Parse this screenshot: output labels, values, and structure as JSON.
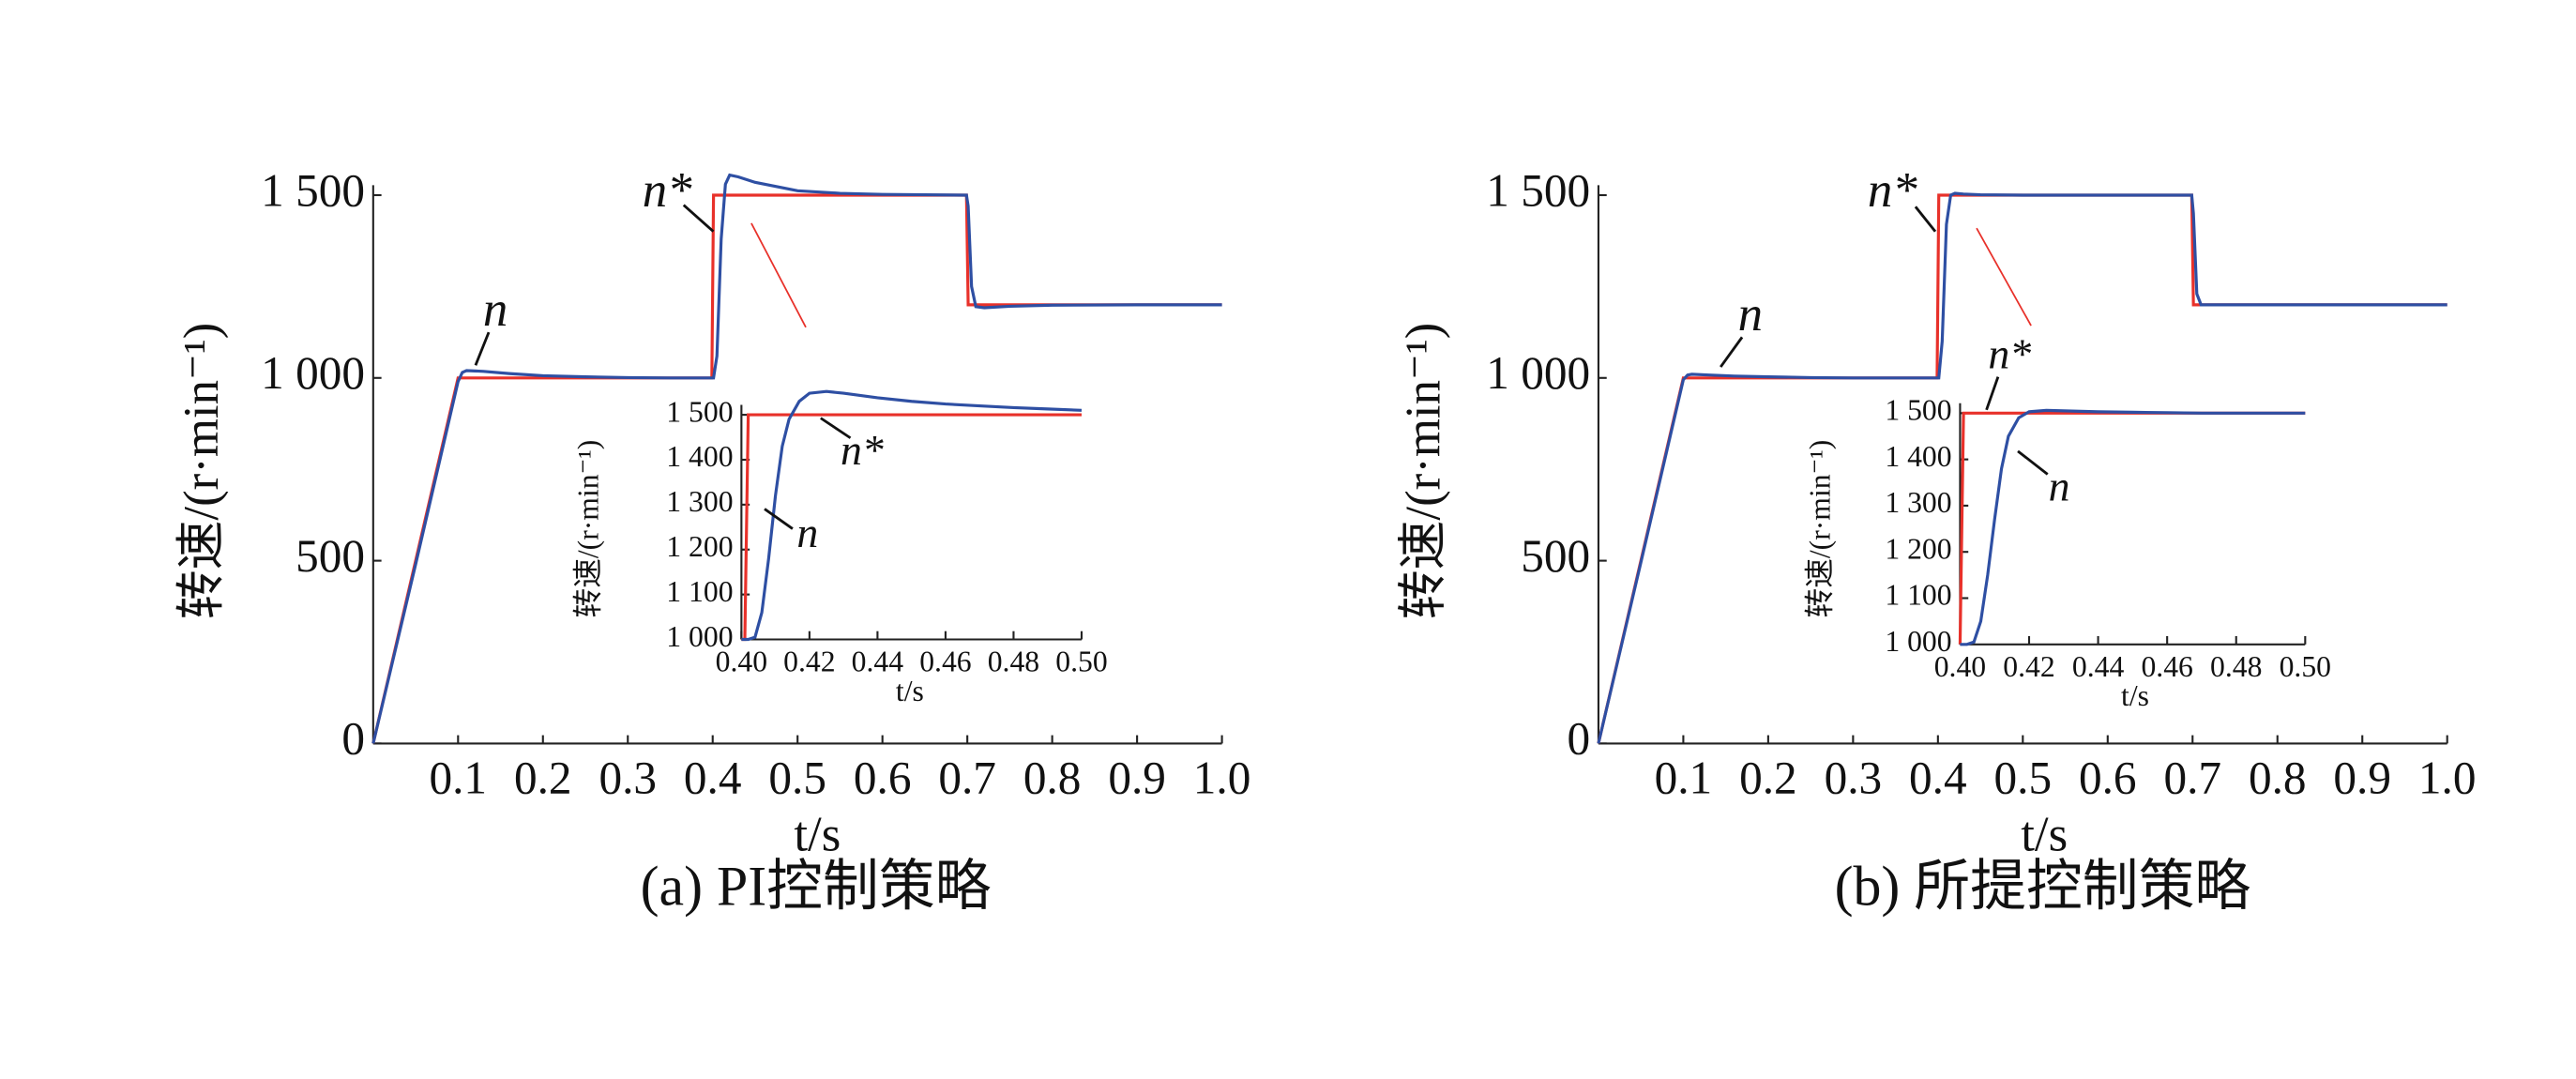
{
  "chart_data": [
    {
      "type": "line",
      "caption": "(a) PI控制策略",
      "xlabel": "t/s",
      "ylabel": "转速/(r·min⁻¹)",
      "xlim": [
        0,
        1
      ],
      "ylim": [
        0,
        1500
      ],
      "xticks": [
        0.1,
        0.2,
        0.3,
        0.4,
        0.5,
        0.6,
        0.7,
        0.8,
        0.9,
        {
          "value": 1,
          "label": "1.0"
        }
      ],
      "yticks": [
        0,
        500,
        {
          "value": 1000,
          "label": "1 000"
        },
        {
          "value": 1500,
          "label": "1 500"
        }
      ],
      "x": [
        0,
        0.05,
        0.1,
        0.105,
        0.11,
        0.13,
        0.16,
        0.2,
        0.25,
        0.3,
        0.35,
        0.399,
        0.401,
        0.405,
        0.41,
        0.415,
        0.42,
        0.43,
        0.45,
        0.5,
        0.55,
        0.6,
        0.65,
        0.699,
        0.701,
        0.705,
        0.71,
        0.72,
        0.75,
        0.8,
        0.9,
        1.0
      ],
      "series": [
        {
          "name": "n*",
          "color": "#e8312a",
          "values": [
            0,
            500,
            1000,
            1000,
            1000,
            1000,
            1000,
            1000,
            1000,
            1000,
            1000,
            1000,
            1500,
            1500,
            1500,
            1500,
            1500,
            1500,
            1500,
            1500,
            1500,
            1500,
            1500,
            1500,
            1200,
            1200,
            1200,
            1200,
            1200,
            1200,
            1200,
            1200
          ]
        },
        {
          "name": "n",
          "color": "#2e4fa3",
          "values": [
            0,
            490,
            990,
            1015,
            1020,
            1018,
            1012,
            1006,
            1003,
            1001,
            1000,
            1000,
            1000,
            1060,
            1380,
            1530,
            1555,
            1550,
            1535,
            1512,
            1505,
            1502,
            1501,
            1500,
            1470,
            1250,
            1195,
            1192,
            1196,
            1199,
            1200,
            1200
          ]
        }
      ]
    },
    {
      "type": "line",
      "xlabel": "t/s",
      "ylabel": "转速/(r·min⁻¹)",
      "xlim": [
        0.4,
        0.5
      ],
      "ylim": [
        1000,
        1500
      ],
      "xticks": [
        {
          "value": 0.4,
          "label": "0.40"
        },
        {
          "value": 0.42,
          "label": "0.42"
        },
        {
          "value": 0.44,
          "label": "0.44"
        },
        {
          "value": 0.46,
          "label": "0.46"
        },
        {
          "value": 0.48,
          "label": "0.48"
        },
        {
          "value": 0.5,
          "label": "0.50"
        }
      ],
      "yticks": [
        {
          "value": 1000,
          "label": "1 000"
        },
        {
          "value": 1100,
          "label": "1 100"
        },
        {
          "value": 1200,
          "label": "1 200"
        },
        {
          "value": 1300,
          "label": "1 300"
        },
        {
          "value": 1400,
          "label": "1 400"
        },
        {
          "value": 1500,
          "label": "1 500"
        }
      ],
      "x": [
        0.4,
        0.401,
        0.402,
        0.404,
        0.406,
        0.408,
        0.41,
        0.412,
        0.414,
        0.417,
        0.42,
        0.425,
        0.43,
        0.44,
        0.45,
        0.46,
        0.47,
        0.48,
        0.49,
        0.5
      ],
      "series": [
        {
          "name": "n*",
          "color": "#e8312a",
          "values": [
            1000,
            1000,
            1500,
            1500,
            1500,
            1500,
            1500,
            1500,
            1500,
            1500,
            1500,
            1500,
            1500,
            1500,
            1500,
            1500,
            1500,
            1500,
            1500,
            1500
          ]
        },
        {
          "name": "n",
          "color": "#2e4fa3",
          "values": [
            1000,
            1000,
            1000,
            1005,
            1060,
            1180,
            1320,
            1430,
            1490,
            1530,
            1548,
            1552,
            1548,
            1538,
            1530,
            1524,
            1520,
            1516,
            1513,
            1510
          ]
        }
      ]
    },
    {
      "type": "line",
      "caption": "(b) 所提控制策略",
      "xlabel": "t/s",
      "ylabel": "转速/(r·min⁻¹)",
      "xlim": [
        0,
        1
      ],
      "ylim": [
        0,
        1500
      ],
      "xticks": [
        0.1,
        0.2,
        0.3,
        0.4,
        0.5,
        0.6,
        0.7,
        0.8,
        0.9,
        {
          "value": 1,
          "label": "1.0"
        }
      ],
      "yticks": [
        0,
        500,
        {
          "value": 1000,
          "label": "1 000"
        },
        {
          "value": 1500,
          "label": "1 500"
        }
      ],
      "x": [
        0,
        0.05,
        0.1,
        0.105,
        0.11,
        0.13,
        0.16,
        0.2,
        0.25,
        0.3,
        0.35,
        0.399,
        0.401,
        0.405,
        0.41,
        0.415,
        0.42,
        0.43,
        0.45,
        0.5,
        0.55,
        0.6,
        0.65,
        0.699,
        0.701,
        0.705,
        0.71,
        0.72,
        0.75,
        0.8,
        0.9,
        1.0
      ],
      "series": [
        {
          "name": "n*",
          "color": "#e8312a",
          "values": [
            0,
            500,
            1000,
            1000,
            1000,
            1000,
            1000,
            1000,
            1000,
            1000,
            1000,
            1000,
            1500,
            1500,
            1500,
            1500,
            1500,
            1500,
            1500,
            1500,
            1500,
            1500,
            1500,
            1500,
            1200,
            1200,
            1200,
            1200,
            1200,
            1200,
            1200,
            1200
          ]
        },
        {
          "name": "n",
          "color": "#2e4fa3",
          "values": [
            0,
            495,
            995,
            1008,
            1010,
            1008,
            1005,
            1003,
            1001,
            1000,
            1000,
            1000,
            1000,
            1100,
            1420,
            1500,
            1505,
            1503,
            1501,
            1500,
            1500,
            1500,
            1500,
            1500,
            1450,
            1230,
            1200,
            1200,
            1200,
            1200,
            1200,
            1200
          ]
        }
      ]
    },
    {
      "type": "line",
      "xlabel": "t/s",
      "ylabel": "转速/(r·min⁻¹)",
      "xlim": [
        0.4,
        0.5
      ],
      "ylim": [
        1000,
        1500
      ],
      "xticks": [
        {
          "value": 0.4,
          "label": "0.40"
        },
        {
          "value": 0.42,
          "label": "0.42"
        },
        {
          "value": 0.44,
          "label": "0.44"
        },
        {
          "value": 0.46,
          "label": "0.46"
        },
        {
          "value": 0.48,
          "label": "0.48"
        },
        {
          "value": 0.5,
          "label": "0.50"
        }
      ],
      "yticks": [
        {
          "value": 1000,
          "label": "1 000"
        },
        {
          "value": 1100,
          "label": "1 100"
        },
        {
          "value": 1200,
          "label": "1 200"
        },
        {
          "value": 1300,
          "label": "1 300"
        },
        {
          "value": 1400,
          "label": "1 400"
        },
        {
          "value": 1500,
          "label": "1 500"
        }
      ],
      "x": [
        0.4,
        0.401,
        0.402,
        0.404,
        0.406,
        0.408,
        0.41,
        0.412,
        0.414,
        0.417,
        0.42,
        0.425,
        0.43,
        0.44,
        0.45,
        0.46,
        0.47,
        0.48,
        0.49,
        0.5
      ],
      "series": [
        {
          "name": "n*",
          "color": "#e8312a",
          "values": [
            1000,
            1500,
            1500,
            1500,
            1500,
            1500,
            1500,
            1500,
            1500,
            1500,
            1500,
            1500,
            1500,
            1500,
            1500,
            1500,
            1500,
            1500,
            1500,
            1500
          ]
        },
        {
          "name": "n",
          "color": "#2e4fa3",
          "values": [
            1000,
            1000,
            1000,
            1005,
            1050,
            1150,
            1270,
            1380,
            1450,
            1490,
            1503,
            1506,
            1505,
            1503,
            1502,
            1501,
            1500,
            1500,
            1500,
            1500
          ]
        }
      ]
    }
  ]
}
